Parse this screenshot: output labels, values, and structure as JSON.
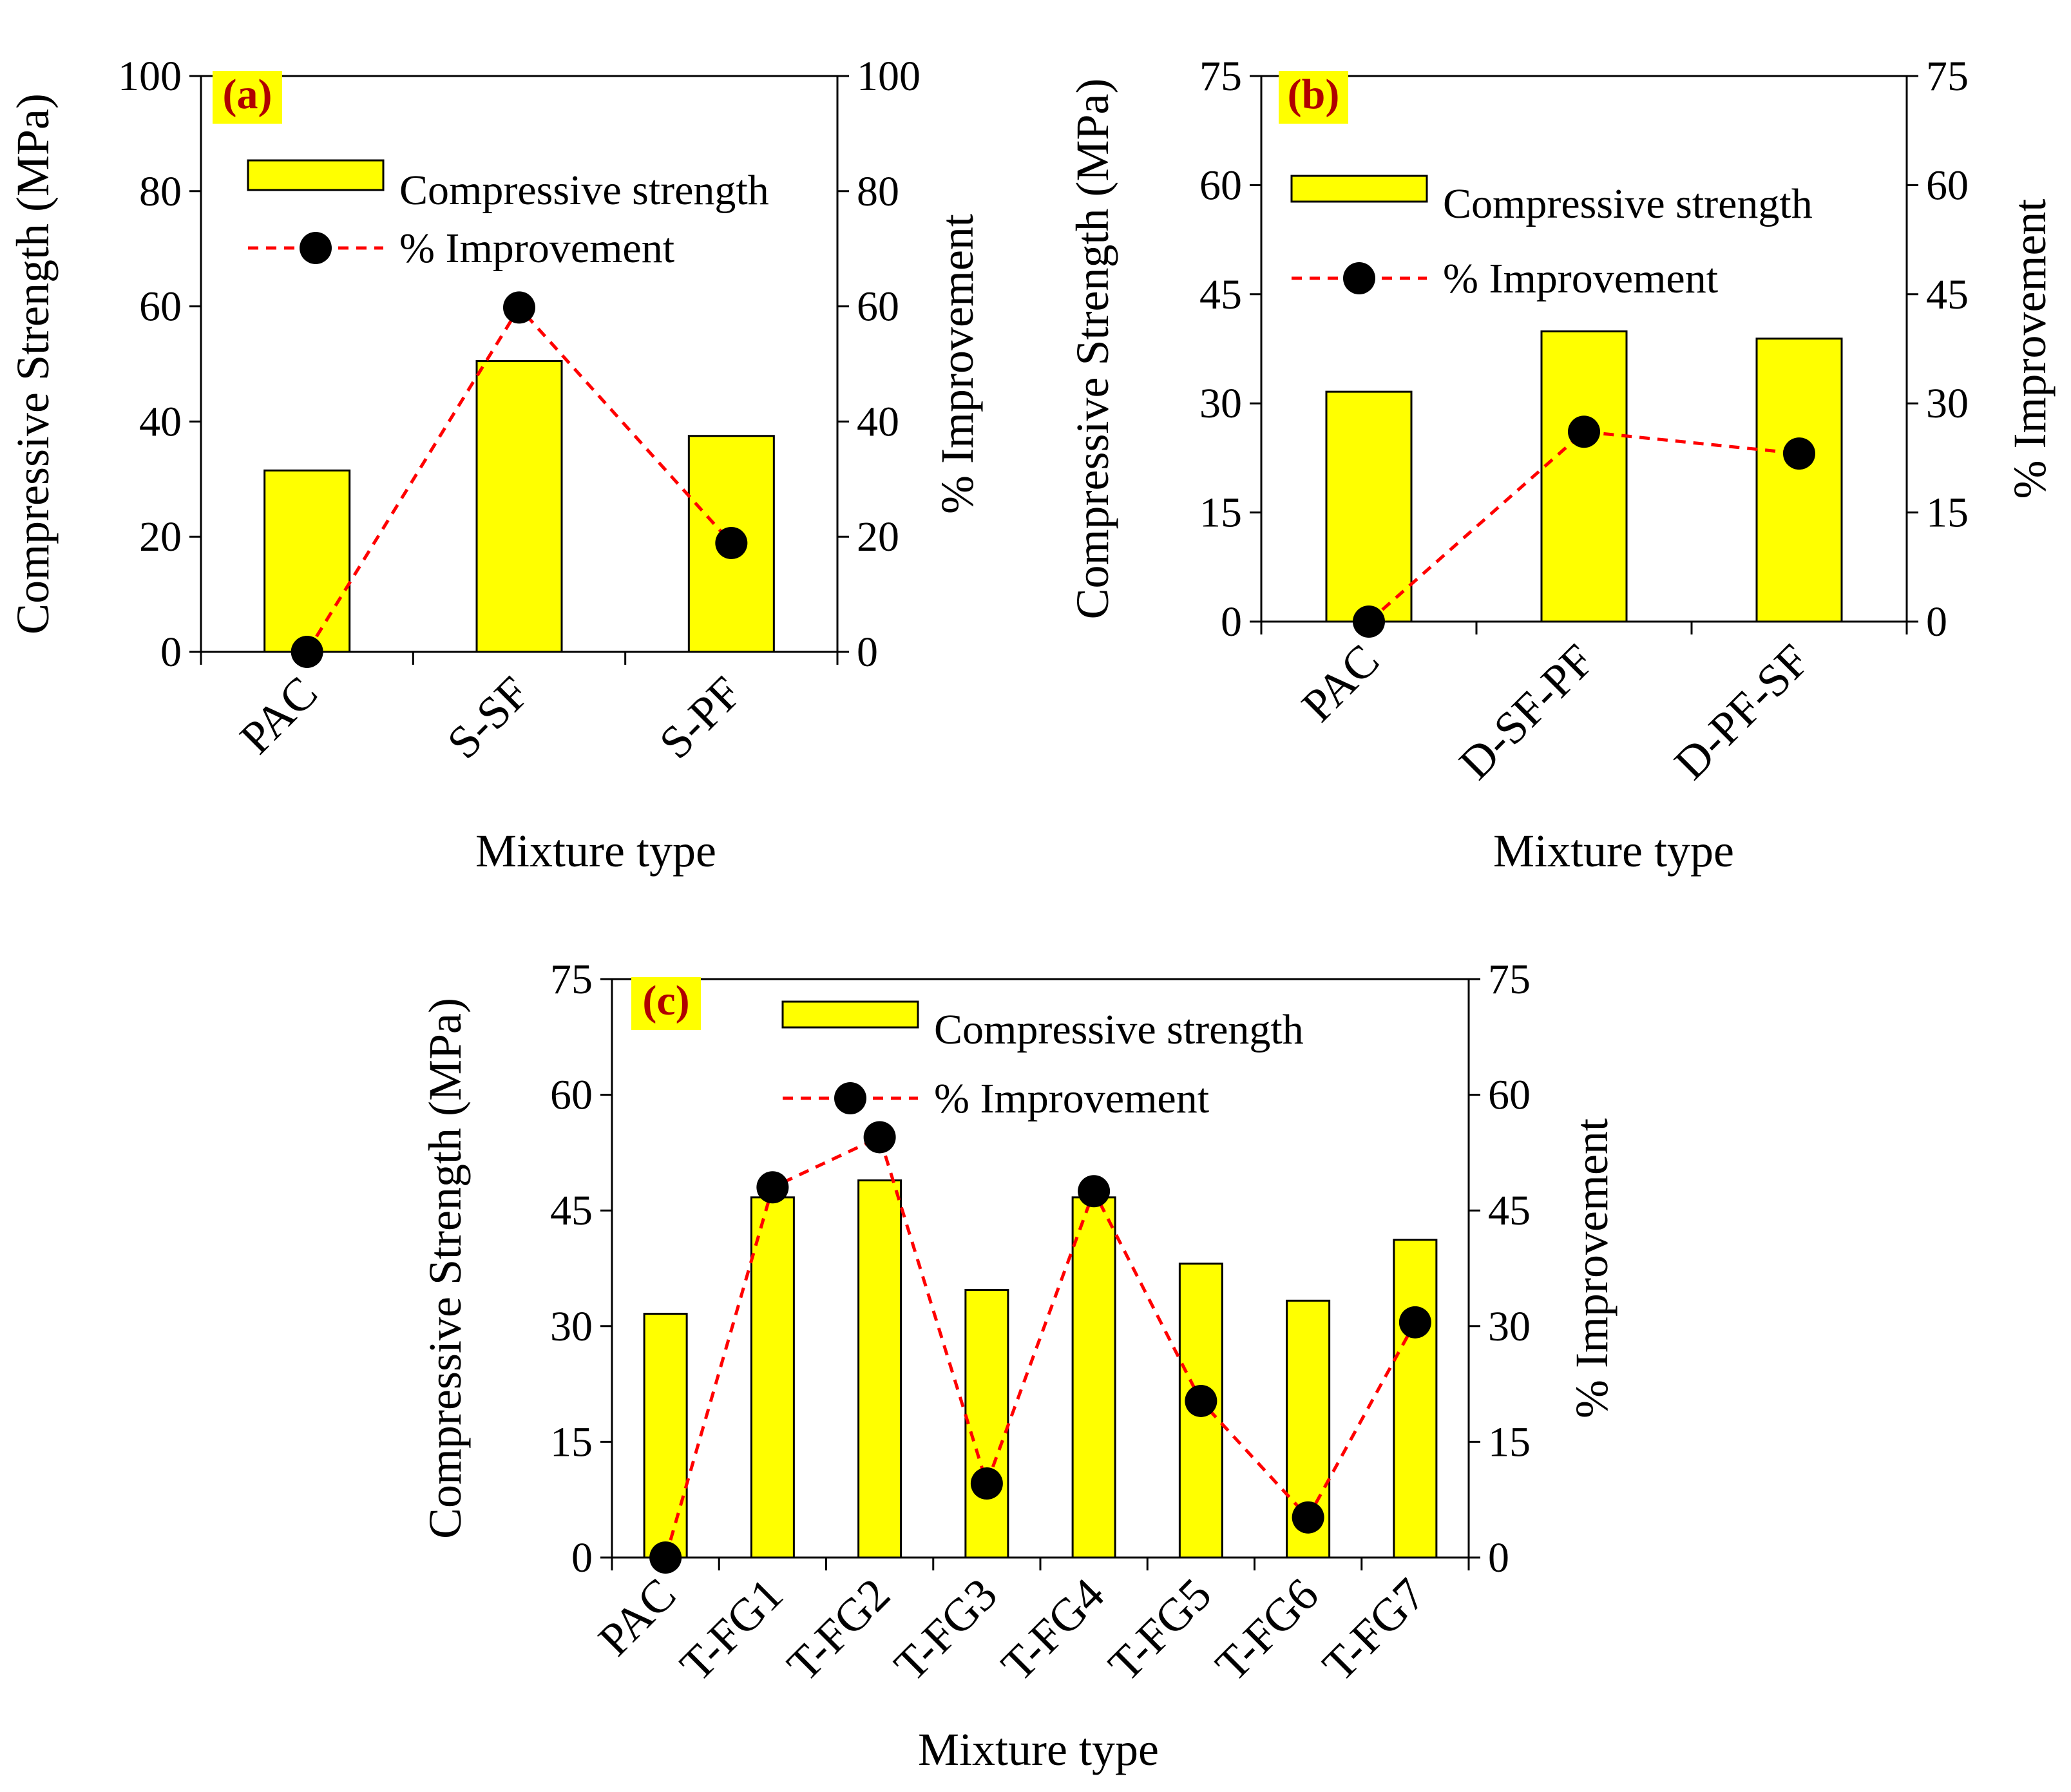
{
  "chart_data": [
    {
      "id": "a",
      "type": "bar",
      "panel_label": "(a)",
      "categories": [
        "PAC",
        "S-SF",
        "S-PF"
      ],
      "series": [
        {
          "name": "Compressive strength",
          "kind": "bar",
          "axis": "left",
          "values": [
            31.5,
            50.5,
            37.5
          ]
        },
        {
          "name": "% Improvement",
          "kind": "line",
          "axis": "right",
          "values": [
            0,
            59.8,
            18.9
          ]
        }
      ],
      "ylabel": "Compressive Strength (MPa)",
      "y2label": "% Improvement",
      "xlabel": "Mixture type",
      "ylim": [
        0,
        100
      ],
      "y2lim": [
        0,
        100
      ],
      "yticks": [
        "0",
        "20",
        "40",
        "60",
        "80",
        "100"
      ],
      "y2ticks": [
        "0",
        "20",
        "40",
        "60",
        "80",
        "100"
      ],
      "legend": "top",
      "colors": {
        "bar": "#ffff00",
        "line": "#ff0000",
        "marker": "#000000",
        "label": "#b00000"
      }
    },
    {
      "id": "b",
      "type": "bar",
      "panel_label": "(b)",
      "categories": [
        "PAC",
        "D-SF-PF",
        "D-PF-SF"
      ],
      "series": [
        {
          "name": "Compressive strength",
          "kind": "bar",
          "axis": "left",
          "values": [
            31.6,
            39.9,
            38.9
          ]
        },
        {
          "name": "% Improvement",
          "kind": "line",
          "axis": "right",
          "values": [
            0,
            26.1,
            23.1
          ]
        }
      ],
      "ylabel": "Compressive Strength (MPa)",
      "y2label": "% Improvement",
      "xlabel": "Mixture type",
      "ylim": [
        0,
        75
      ],
      "y2lim": [
        0,
        75
      ],
      "yticks": [
        "0",
        "15",
        "30",
        "45",
        "60",
        "75"
      ],
      "y2ticks": [
        "0",
        "15",
        "30",
        "45",
        "60",
        "75"
      ],
      "legend": "top",
      "colors": {
        "bar": "#ffff00",
        "line": "#ff0000",
        "marker": "#000000",
        "label": "#b00000"
      }
    },
    {
      "id": "c",
      "type": "bar",
      "panel_label": "(c)",
      "categories": [
        "PAC",
        "T-FG1",
        "T-FG2",
        "T-FG3",
        "T-FG4",
        "T-FG5",
        "T-FG6",
        "T-FG7"
      ],
      "series": [
        {
          "name": "Compressive strength",
          "kind": "bar",
          "axis": "left",
          "values": [
            31.6,
            46.7,
            48.9,
            34.7,
            46.7,
            38.1,
            33.3,
            41.2
          ]
        },
        {
          "name": "% Improvement",
          "kind": "line",
          "axis": "right",
          "values": [
            0,
            48.0,
            54.5,
            9.6,
            47.5,
            20.3,
            5.2,
            30.5
          ]
        }
      ],
      "ylabel": "Compressive Strength (MPa)",
      "y2label": "% Improvement",
      "xlabel": "Mixture type",
      "ylim": [
        0,
        75
      ],
      "y2lim": [
        0,
        75
      ],
      "yticks": [
        "0",
        "15",
        "30",
        "45",
        "60",
        "75"
      ],
      "y2ticks": [
        "0",
        "15",
        "30",
        "45",
        "60",
        "75"
      ],
      "legend": "top",
      "colors": {
        "bar": "#ffff00",
        "line": "#ff0000",
        "marker": "#000000",
        "label": "#b00000"
      }
    }
  ]
}
